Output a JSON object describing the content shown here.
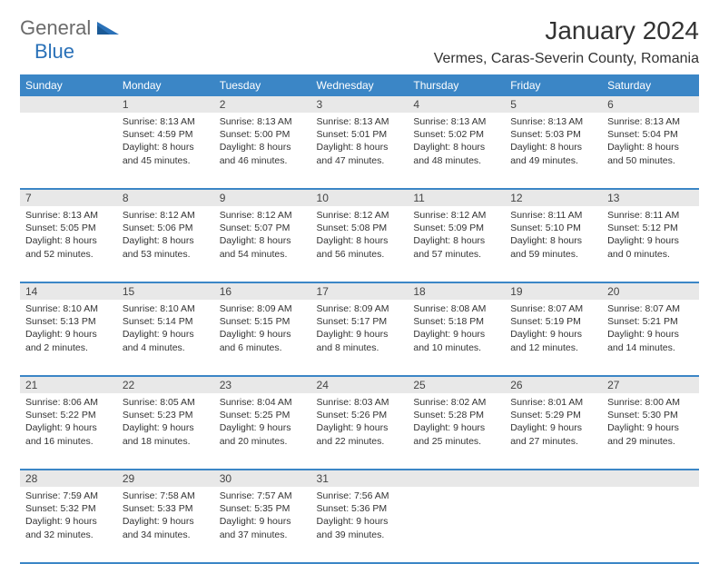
{
  "logo": {
    "gray": "General",
    "blue": "Blue"
  },
  "title": "January 2024",
  "location": "Vermes, Caras-Severin County, Romania",
  "header_bg": "#3b86c6",
  "header_text_color": "#ffffff",
  "daynum_bg": "#e8e8e8",
  "row_divider_color": "#3b86c6",
  "days": [
    "Sunday",
    "Monday",
    "Tuesday",
    "Wednesday",
    "Thursday",
    "Friday",
    "Saturday"
  ],
  "weeks": [
    [
      null,
      {
        "n": "1",
        "sr": "8:13 AM",
        "ss": "4:59 PM",
        "dl": "8 hours and 45 minutes."
      },
      {
        "n": "2",
        "sr": "8:13 AM",
        "ss": "5:00 PM",
        "dl": "8 hours and 46 minutes."
      },
      {
        "n": "3",
        "sr": "8:13 AM",
        "ss": "5:01 PM",
        "dl": "8 hours and 47 minutes."
      },
      {
        "n": "4",
        "sr": "8:13 AM",
        "ss": "5:02 PM",
        "dl": "8 hours and 48 minutes."
      },
      {
        "n": "5",
        "sr": "8:13 AM",
        "ss": "5:03 PM",
        "dl": "8 hours and 49 minutes."
      },
      {
        "n": "6",
        "sr": "8:13 AM",
        "ss": "5:04 PM",
        "dl": "8 hours and 50 minutes."
      }
    ],
    [
      {
        "n": "7",
        "sr": "8:13 AM",
        "ss": "5:05 PM",
        "dl": "8 hours and 52 minutes."
      },
      {
        "n": "8",
        "sr": "8:12 AM",
        "ss": "5:06 PM",
        "dl": "8 hours and 53 minutes."
      },
      {
        "n": "9",
        "sr": "8:12 AM",
        "ss": "5:07 PM",
        "dl": "8 hours and 54 minutes."
      },
      {
        "n": "10",
        "sr": "8:12 AM",
        "ss": "5:08 PM",
        "dl": "8 hours and 56 minutes."
      },
      {
        "n": "11",
        "sr": "8:12 AM",
        "ss": "5:09 PM",
        "dl": "8 hours and 57 minutes."
      },
      {
        "n": "12",
        "sr": "8:11 AM",
        "ss": "5:10 PM",
        "dl": "8 hours and 59 minutes."
      },
      {
        "n": "13",
        "sr": "8:11 AM",
        "ss": "5:12 PM",
        "dl": "9 hours and 0 minutes."
      }
    ],
    [
      {
        "n": "14",
        "sr": "8:10 AM",
        "ss": "5:13 PM",
        "dl": "9 hours and 2 minutes."
      },
      {
        "n": "15",
        "sr": "8:10 AM",
        "ss": "5:14 PM",
        "dl": "9 hours and 4 minutes."
      },
      {
        "n": "16",
        "sr": "8:09 AM",
        "ss": "5:15 PM",
        "dl": "9 hours and 6 minutes."
      },
      {
        "n": "17",
        "sr": "8:09 AM",
        "ss": "5:17 PM",
        "dl": "9 hours and 8 minutes."
      },
      {
        "n": "18",
        "sr": "8:08 AM",
        "ss": "5:18 PM",
        "dl": "9 hours and 10 minutes."
      },
      {
        "n": "19",
        "sr": "8:07 AM",
        "ss": "5:19 PM",
        "dl": "9 hours and 12 minutes."
      },
      {
        "n": "20",
        "sr": "8:07 AM",
        "ss": "5:21 PM",
        "dl": "9 hours and 14 minutes."
      }
    ],
    [
      {
        "n": "21",
        "sr": "8:06 AM",
        "ss": "5:22 PM",
        "dl": "9 hours and 16 minutes."
      },
      {
        "n": "22",
        "sr": "8:05 AM",
        "ss": "5:23 PM",
        "dl": "9 hours and 18 minutes."
      },
      {
        "n": "23",
        "sr": "8:04 AM",
        "ss": "5:25 PM",
        "dl": "9 hours and 20 minutes."
      },
      {
        "n": "24",
        "sr": "8:03 AM",
        "ss": "5:26 PM",
        "dl": "9 hours and 22 minutes."
      },
      {
        "n": "25",
        "sr": "8:02 AM",
        "ss": "5:28 PM",
        "dl": "9 hours and 25 minutes."
      },
      {
        "n": "26",
        "sr": "8:01 AM",
        "ss": "5:29 PM",
        "dl": "9 hours and 27 minutes."
      },
      {
        "n": "27",
        "sr": "8:00 AM",
        "ss": "5:30 PM",
        "dl": "9 hours and 29 minutes."
      }
    ],
    [
      {
        "n": "28",
        "sr": "7:59 AM",
        "ss": "5:32 PM",
        "dl": "9 hours and 32 minutes."
      },
      {
        "n": "29",
        "sr": "7:58 AM",
        "ss": "5:33 PM",
        "dl": "9 hours and 34 minutes."
      },
      {
        "n": "30",
        "sr": "7:57 AM",
        "ss": "5:35 PM",
        "dl": "9 hours and 37 minutes."
      },
      {
        "n": "31",
        "sr": "7:56 AM",
        "ss": "5:36 PM",
        "dl": "9 hours and 39 minutes."
      },
      null,
      null,
      null
    ]
  ],
  "labels": {
    "sunrise": "Sunrise:",
    "sunset": "Sunset:",
    "daylight": "Daylight:"
  }
}
